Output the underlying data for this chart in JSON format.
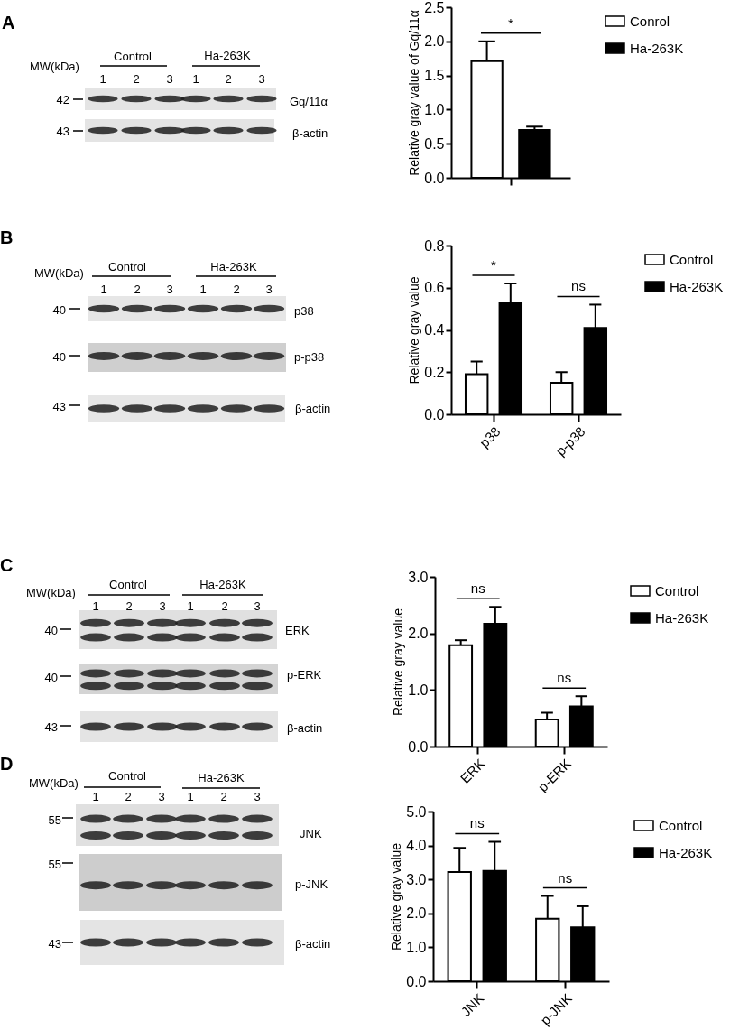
{
  "chart_data": [
    {
      "type": "other",
      "annotations": [
        "A",
        "MW(kDa)",
        "Control",
        "Ha-263K",
        "1",
        "2",
        "3",
        "1",
        "2",
        "3",
        "42",
        "Gq/11α",
        "43",
        "β-actin"
      ]
    },
    {
      "type": "bar",
      "ylabel": "Relative gray value of Gq/11α",
      "categories": [
        null
      ],
      "series": [
        {
          "name": "Conrol",
          "color": "#ffffff",
          "values": [
            1.71
          ],
          "errors": [
            [
              1.71,
              2.0
            ]
          ]
        },
        {
          "name": "Ha-263K",
          "color": "#000000",
          "values": [
            0.7
          ],
          "errors": [
            [
              0.7,
              0.75
            ]
          ]
        }
      ],
      "ylim": [
        0,
        2.5
      ],
      "yticks": [
        {
          "value": 0,
          "label": "0.0"
        },
        0.5,
        {
          "value": 1,
          "label": "1.0"
        },
        1.5,
        {
          "value": 2,
          "label": "2.0"
        },
        2.5
      ],
      "annotations": [
        "*"
      ],
      "legend": "top right",
      "tick_labels": "y"
    },
    {
      "type": "other",
      "annotations": [
        "B",
        "MW(kDa)",
        "Control",
        "Ha-263K",
        "1",
        "2",
        "3",
        "1",
        "2",
        "3",
        "40",
        "p38",
        "40",
        "p-p38",
        "43",
        "β-actin"
      ]
    },
    {
      "type": "bar",
      "ylabel": "Relative gray value",
      "categories": [
        "p38",
        "p-p38"
      ],
      "series": [
        {
          "name": "Control",
          "color": "#ffffff",
          "values": [
            0.19,
            0.15
          ],
          "errors": [
            [
              0.19,
              0.25
            ],
            [
              0.15,
              0.2
            ]
          ]
        },
        {
          "name": "Ha-263K",
          "color": "#000000",
          "values": [
            0.53,
            0.41
          ],
          "errors": [
            [
              0.53,
              0.62
            ],
            [
              0.41,
              0.52
            ]
          ]
        }
      ],
      "ylim": [
        0,
        0.8
      ],
      "yticks": [
        {
          "value": 0,
          "label": "0.0"
        },
        0.2,
        0.4,
        0.6,
        0.8
      ],
      "annotations": [
        "*",
        "ns"
      ],
      "legend": "top right"
    },
    {
      "type": "other",
      "annotations": [
        "C",
        "MW(kDa)",
        "Control",
        "Ha-263K",
        "1",
        "2",
        "3",
        "1",
        "2",
        "3",
        "40",
        "ERK",
        "40",
        "p-ERK",
        "43",
        "β-actin"
      ]
    },
    {
      "type": "bar",
      "ylabel": "Relative gray value",
      "categories": [
        "ERK",
        "p-ERK"
      ],
      "series": [
        {
          "name": "Control",
          "color": "#ffffff",
          "values": [
            1.79,
            0.48
          ],
          "errors": [
            [
              1.79,
              1.88
            ],
            [
              0.48,
              0.6
            ]
          ]
        },
        {
          "name": "Ha-263K",
          "color": "#000000",
          "values": [
            2.17,
            0.71
          ],
          "errors": [
            [
              2.17,
              2.47
            ],
            [
              0.71,
              0.89
            ]
          ]
        }
      ],
      "ylim": [
        0,
        3
      ],
      "yticks": [
        {
          "value": 0,
          "label": "0.0"
        },
        {
          "value": 1,
          "label": "1.0"
        },
        {
          "value": 2,
          "label": "2.0"
        },
        {
          "value": 3,
          "label": "3.0"
        }
      ],
      "annotations": [
        "ns",
        "ns"
      ],
      "legend": "top right"
    },
    {
      "type": "other",
      "annotations": [
        "D",
        "MW(kDa)",
        "Control",
        "Ha-263K",
        "1",
        "2",
        "3",
        "1",
        "2",
        "3",
        "55",
        "JNK",
        "55",
        "p-JNK",
        "43",
        "β-actin"
      ]
    },
    {
      "type": "bar",
      "ylabel": "Relative gray value",
      "categories": [
        "JNK",
        "p-JNK"
      ],
      "series": [
        {
          "name": "Control",
          "color": "#ffffff",
          "values": [
            3.22,
            1.84
          ],
          "errors": [
            [
              3.22,
              3.93
            ],
            [
              1.84,
              2.51
            ]
          ]
        },
        {
          "name": "Ha-263K",
          "color": "#000000",
          "values": [
            3.25,
            1.59
          ],
          "errors": [
            [
              3.25,
              4.11
            ],
            [
              1.59,
              2.21
            ]
          ]
        }
      ],
      "ylim": [
        0,
        5
      ],
      "yticks": [
        {
          "value": 0,
          "label": "0.0"
        },
        {
          "value": 1,
          "label": "1.0"
        },
        {
          "value": 2,
          "label": "2.0"
        },
        {
          "value": 3,
          "label": "3.0"
        },
        {
          "value": 4,
          "label": "4.0"
        },
        {
          "value": 5,
          "label": "5.0"
        }
      ],
      "annotations": [
        "ns",
        "ns"
      ],
      "legend": "top right"
    }
  ]
}
